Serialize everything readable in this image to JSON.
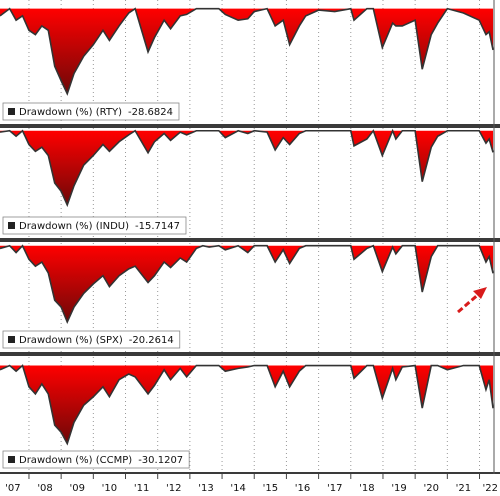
{
  "chart_data": [
    {
      "type": "area",
      "xlim": [
        2007.1,
        2022.45
      ],
      "ylim": [
        -80,
        6
      ],
      "x": [
        2007.1,
        2007.4,
        2007.6,
        2007.8,
        2008.0,
        2008.2,
        2008.4,
        2008.6,
        2008.8,
        2009.0,
        2009.19,
        2009.4,
        2009.7,
        2010.0,
        2010.3,
        2010.5,
        2010.8,
        2011.1,
        2011.3,
        2011.7,
        2011.9,
        2012.2,
        2012.4,
        2012.7,
        2012.9,
        2013.2,
        2013.4,
        2013.6,
        2013.9,
        2014.1,
        2014.5,
        2014.8,
        2015.0,
        2015.4,
        2015.65,
        2015.9,
        2016.1,
        2016.4,
        2016.6,
        2017.0,
        2017.5,
        2018.0,
        2018.1,
        2018.5,
        2018.7,
        2018.98,
        2019.3,
        2019.4,
        2019.6,
        2020.0,
        2020.22,
        2020.5,
        2020.7,
        2021.0,
        2021.5,
        2021.99,
        2022.2,
        2022.3,
        2022.42
      ],
      "series": [
        {
          "name": "Drawdown (%) (RTY)",
          "color": "#ff0000",
          "values": [
            -5,
            0,
            -8,
            -5,
            -15,
            -18,
            -12,
            -15,
            -40,
            -50,
            -59,
            -45,
            -33,
            -25,
            -15,
            -22,
            -12,
            -3,
            0,
            -30,
            -20,
            -8,
            -14,
            -5,
            -4,
            0,
            0,
            0,
            0,
            -4,
            -8,
            -7,
            -2,
            0,
            -12,
            -8,
            -25,
            -12,
            -5,
            -1,
            -2,
            0,
            -8,
            0,
            0,
            -27,
            -10,
            -12,
            -12,
            -8,
            -42,
            -18,
            -10,
            0,
            -3,
            -8,
            -18,
            -16,
            -28.6824
          ]
        }
      ]
    },
    {
      "type": "area",
      "xlim": [
        2007.1,
        2022.45
      ],
      "ylim": [
        -78,
        2
      ],
      "x": [
        2007.1,
        2007.4,
        2007.6,
        2007.8,
        2008.0,
        2008.2,
        2008.4,
        2008.6,
        2008.8,
        2009.0,
        2009.19,
        2009.4,
        2009.7,
        2010.0,
        2010.3,
        2010.5,
        2010.8,
        2011.1,
        2011.3,
        2011.7,
        2011.9,
        2012.2,
        2012.4,
        2012.7,
        2012.9,
        2013.2,
        2013.4,
        2013.6,
        2013.9,
        2014.1,
        2014.5,
        2014.8,
        2015.0,
        2015.4,
        2015.65,
        2015.9,
        2016.1,
        2016.4,
        2016.6,
        2017.0,
        2017.5,
        2018.0,
        2018.1,
        2018.5,
        2018.7,
        2018.98,
        2019.3,
        2019.4,
        2019.6,
        2020.0,
        2020.22,
        2020.5,
        2020.7,
        2021.0,
        2021.5,
        2021.99,
        2022.2,
        2022.3,
        2022.42
      ],
      "series": [
        {
          "name": "Drawdown (%) (INDU)",
          "color": "#ff0000",
          "values": [
            -1,
            0,
            -4,
            0,
            -10,
            -15,
            -12,
            -18,
            -38,
            -44,
            -54,
            -40,
            -25,
            -18,
            -10,
            -15,
            -8,
            -3,
            0,
            -16,
            -8,
            -2,
            -7,
            -1,
            -3,
            0,
            0,
            0,
            0,
            -5,
            0,
            -2,
            0,
            -1,
            -14,
            -5,
            -10,
            -2,
            0,
            0,
            0,
            0,
            -11,
            -6,
            0,
            -18,
            0,
            -6,
            0,
            0,
            -37,
            -12,
            -4,
            0,
            0,
            0,
            -9,
            -6,
            -15.7147
          ]
        }
      ]
    },
    {
      "type": "area",
      "xlim": [
        2007.1,
        2022.45
      ],
      "ylim": [
        -78,
        2
      ],
      "x": [
        2007.1,
        2007.4,
        2007.6,
        2007.8,
        2008.0,
        2008.2,
        2008.4,
        2008.6,
        2008.8,
        2009.0,
        2009.19,
        2009.4,
        2009.7,
        2010.0,
        2010.3,
        2010.5,
        2010.8,
        2011.1,
        2011.3,
        2011.7,
        2011.9,
        2012.2,
        2012.4,
        2012.7,
        2012.9,
        2013.2,
        2013.4,
        2013.6,
        2013.9,
        2014.1,
        2014.5,
        2014.8,
        2015.0,
        2015.4,
        2015.65,
        2015.9,
        2016.1,
        2016.4,
        2016.6,
        2017.0,
        2017.5,
        2018.0,
        2018.1,
        2018.5,
        2018.7,
        2018.98,
        2019.3,
        2019.4,
        2019.6,
        2020.0,
        2020.22,
        2020.5,
        2020.7,
        2021.0,
        2021.5,
        2021.99,
        2022.2,
        2022.3,
        2022.42
      ],
      "series": [
        {
          "name": "Drawdown (%) (SPX)",
          "color": "#ff0000",
          "values": [
            -2,
            0,
            -5,
            0,
            -10,
            -15,
            -12,
            -20,
            -40,
            -45,
            -56,
            -45,
            -35,
            -28,
            -22,
            -30,
            -22,
            -17,
            -15,
            -27,
            -22,
            -12,
            -16,
            -9,
            -12,
            -2,
            0,
            -1,
            0,
            -3,
            0,
            -5,
            0,
            0,
            -12,
            -3,
            -13,
            -2,
            0,
            0,
            0,
            0,
            -10,
            -2,
            0,
            -19,
            -1,
            -6,
            0,
            0,
            -34,
            -8,
            0,
            0,
            0,
            0,
            -12,
            -8,
            -20.2614
          ]
        }
      ]
    },
    {
      "type": "area",
      "xlim": [
        2007.1,
        2022.45
      ],
      "ylim": [
        -75,
        6
      ],
      "x": [
        2007.1,
        2007.4,
        2007.6,
        2007.8,
        2008.0,
        2008.2,
        2008.4,
        2008.6,
        2008.8,
        2009.0,
        2009.19,
        2009.4,
        2009.7,
        2010.0,
        2010.3,
        2010.5,
        2010.8,
        2011.1,
        2011.3,
        2011.7,
        2011.9,
        2012.2,
        2012.4,
        2012.7,
        2012.9,
        2013.2,
        2013.4,
        2013.6,
        2013.9,
        2014.1,
        2014.5,
        2014.8,
        2015.0,
        2015.4,
        2015.65,
        2015.9,
        2016.1,
        2016.4,
        2016.6,
        2017.0,
        2017.5,
        2018.0,
        2018.1,
        2018.5,
        2018.7,
        2018.98,
        2019.3,
        2019.4,
        2019.6,
        2020.0,
        2020.22,
        2020.5,
        2020.7,
        2021.0,
        2021.5,
        2021.99,
        2022.2,
        2022.3,
        2022.42
      ],
      "series": [
        {
          "name": "Drawdown (%) (CCMP)",
          "color": "#ff0000",
          "values": [
            -3,
            0,
            -4,
            0,
            -15,
            -20,
            -13,
            -20,
            -42,
            -47,
            -55,
            -40,
            -28,
            -22,
            -15,
            -22,
            -10,
            -6,
            -8,
            -20,
            -14,
            -3,
            -10,
            -2,
            -8,
            0,
            0,
            0,
            0,
            -4,
            -2,
            -1,
            0,
            0,
            -15,
            -4,
            -15,
            -4,
            0,
            0,
            0,
            0,
            -9,
            0,
            0,
            -23,
            -2,
            -10,
            -1,
            0,
            -30,
            0,
            0,
            -3,
            0,
            0,
            -17,
            -10,
            -30.1207
          ]
        }
      ],
      "xticks": [
        {
          "value": 2007,
          "label": "'07"
        },
        {
          "value": 2008,
          "label": "'08"
        },
        {
          "value": 2009,
          "label": "'09"
        },
        {
          "value": 2010,
          "label": "'10"
        },
        {
          "value": 2011,
          "label": "'11"
        },
        {
          "value": 2012,
          "label": "'12"
        },
        {
          "value": 2013,
          "label": "'13"
        },
        {
          "value": 2014,
          "label": "'14"
        },
        {
          "value": 2015,
          "label": "'15"
        },
        {
          "value": 2016,
          "label": "'16"
        },
        {
          "value": 2017,
          "label": "'17"
        },
        {
          "value": 2018,
          "label": "'18"
        },
        {
          "value": 2019,
          "label": "'19"
        },
        {
          "value": 2020,
          "label": "'20"
        },
        {
          "value": 2021,
          "label": "'21"
        },
        {
          "value": 2022,
          "label": "'22"
        }
      ]
    }
  ]
}
